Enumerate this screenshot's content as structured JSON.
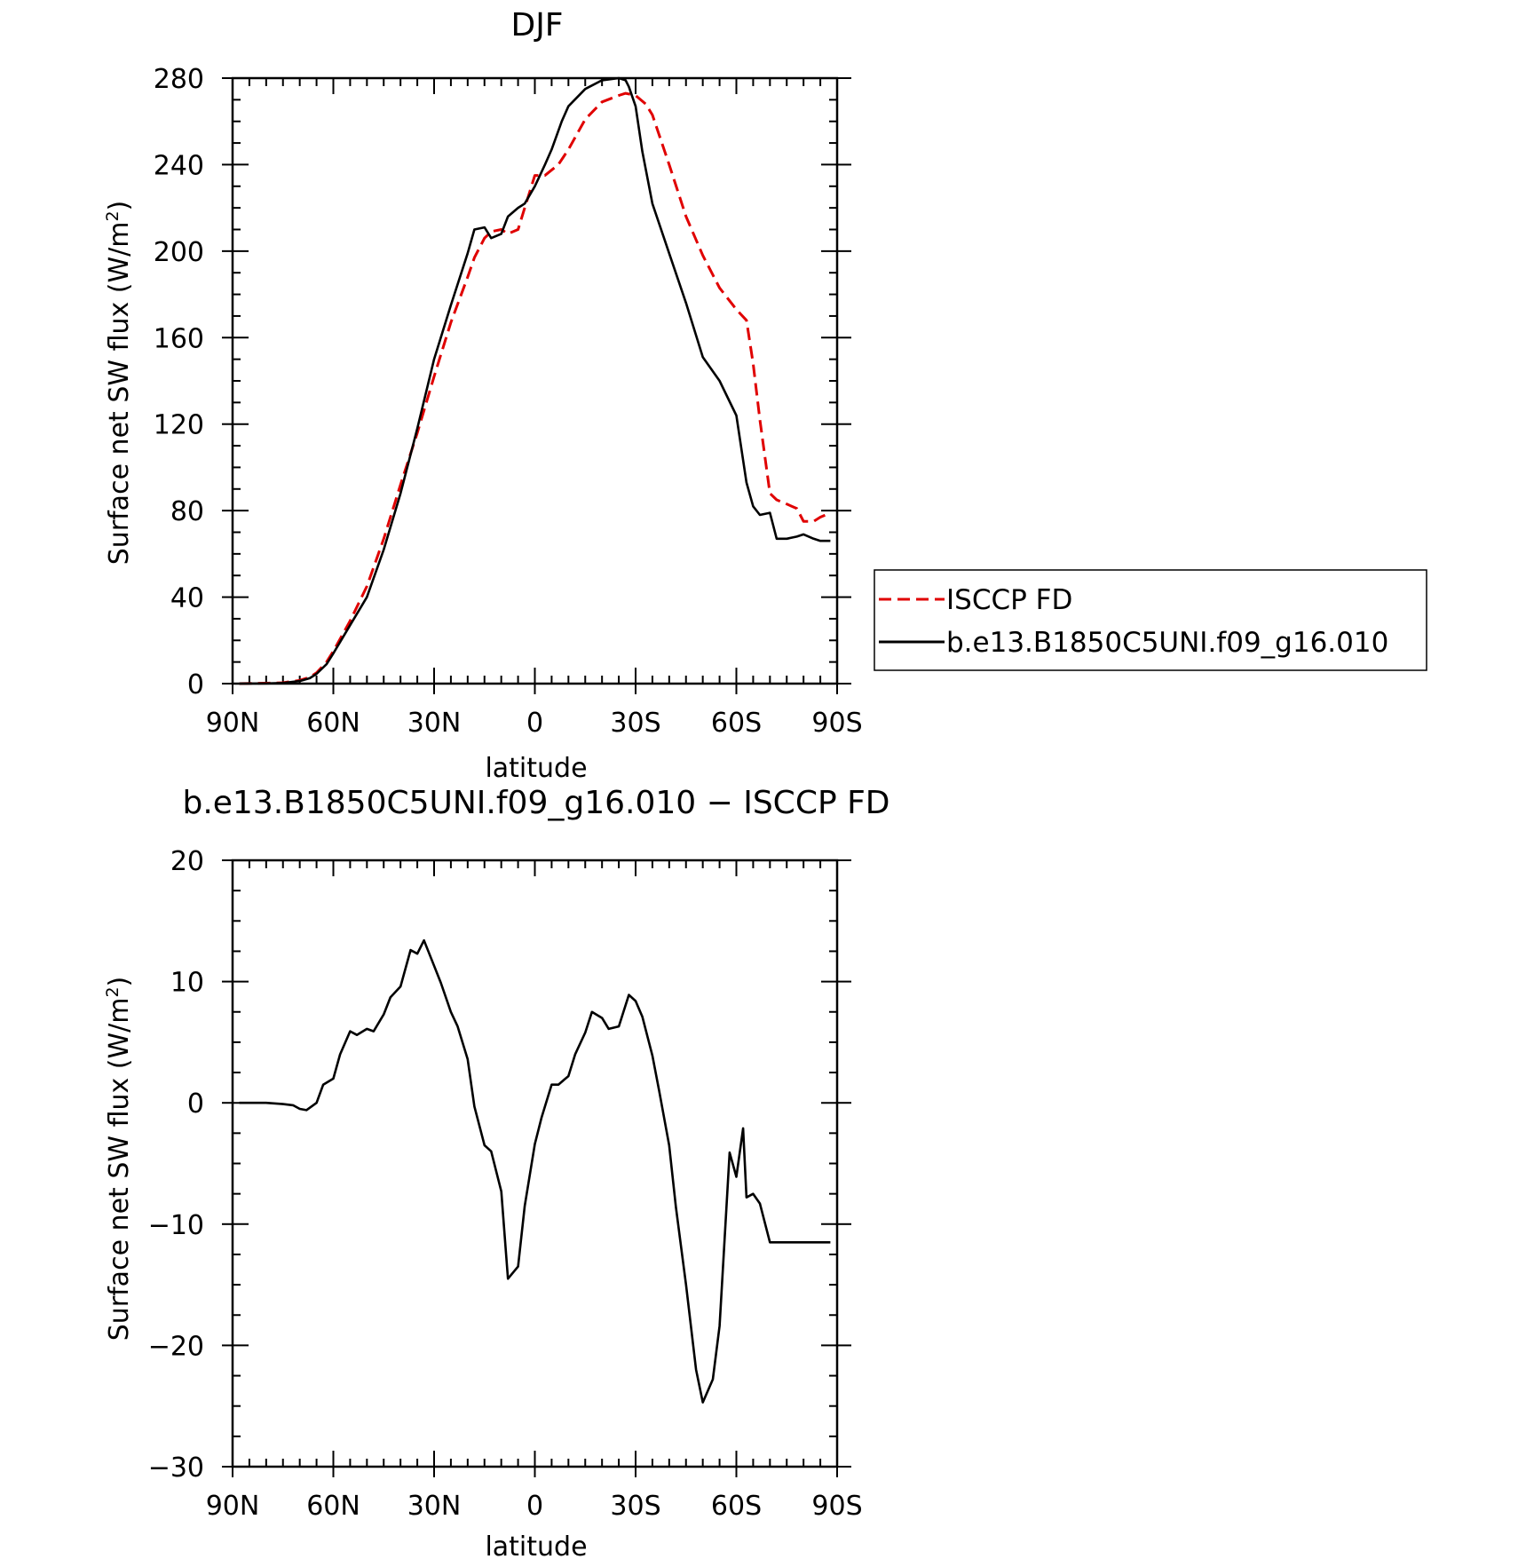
{
  "chart_data": [
    {
      "type": "line",
      "title": "DJF",
      "xlabel": "latitude",
      "ylabel_text": "Surface net SW flux (W/m",
      "ylabel_sup": "2",
      "ylabel_close": ")",
      "xlim": [
        -90,
        90
      ],
      "ylim": [
        0,
        280
      ],
      "x_ticks": [
        {
          "value": -90,
          "label": "90N"
        },
        {
          "value": -60,
          "label": "60N"
        },
        {
          "value": -30,
          "label": "30N"
        },
        {
          "value": 0,
          "label": "0"
        },
        {
          "value": 30,
          "label": "30S"
        },
        {
          "value": 60,
          "label": "60S"
        },
        {
          "value": 90,
          "label": "90S"
        }
      ],
      "y_ticks": [
        {
          "value": 0,
          "label": "0"
        },
        {
          "value": 40,
          "label": "40"
        },
        {
          "value": 80,
          "label": "80"
        },
        {
          "value": 120,
          "label": "120"
        },
        {
          "value": 160,
          "label": "160"
        },
        {
          "value": 200,
          "label": "200"
        },
        {
          "value": 240,
          "label": "240"
        },
        {
          "value": 280,
          "label": "280"
        }
      ],
      "legend": "right",
      "series": [
        {
          "name": "ISCCP FD",
          "color": "#e00000",
          "dash": true,
          "x": [
            -88,
            -80,
            -75,
            -70,
            -67,
            -65,
            -62,
            -60,
            -55,
            -50,
            -45,
            -40,
            -35,
            -30,
            -25,
            -20,
            -18,
            -15,
            -13,
            -10,
            -8,
            -5,
            -3,
            0,
            3,
            7,
            10,
            15,
            20,
            25,
            27,
            30,
            33,
            35,
            40,
            45,
            50,
            55,
            60,
            63,
            65,
            67,
            70,
            72,
            75,
            78,
            80,
            83,
            85,
            88
          ],
          "y": [
            0,
            0.2,
            0.4,
            1.5,
            3,
            5,
            10,
            15,
            29,
            45,
            67,
            92,
            116,
            142,
            167,
            188,
            197,
            206,
            209,
            210,
            208,
            210,
            220,
            235,
            235,
            240,
            247,
            261,
            269,
            272,
            273,
            272,
            268,
            263,
            240,
            216,
            198,
            183,
            173,
            168,
            148,
            122,
            88,
            85,
            83,
            81,
            75,
            75,
            77,
            79
          ]
        },
        {
          "name": "b.e13.B1850C5UNI.f09_g16.010",
          "color": "#000000",
          "dash": false,
          "x": [
            -88,
            -80,
            -75,
            -70,
            -67,
            -65,
            -62,
            -60,
            -55,
            -50,
            -45,
            -40,
            -35,
            -30,
            -25,
            -20,
            -18,
            -15,
            -13,
            -10,
            -8,
            -5,
            -3,
            0,
            3,
            5,
            8,
            10,
            15,
            20,
            25,
            27,
            28,
            30,
            32,
            35,
            40,
            45,
            50,
            55,
            60,
            63,
            65,
            67,
            70,
            72,
            75,
            78,
            80,
            83,
            85,
            88
          ],
          "y": [
            0,
            0.1,
            0.3,
            1.2,
            2.5,
            4.5,
            9,
            14,
            27,
            40,
            62,
            88,
            118,
            150,
            175,
            199,
            210,
            211,
            206,
            208,
            216,
            220,
            222,
            230,
            240,
            247,
            260,
            267,
            275,
            279,
            280,
            279,
            276,
            267,
            246,
            222,
            199,
            176,
            151,
            140,
            124,
            93,
            82,
            78,
            79,
            67,
            67,
            68,
            69,
            67,
            66,
            66
          ]
        }
      ]
    },
    {
      "type": "line",
      "title": "b.e13.B1850C5UNI.f09_g16.010 − ISCCP FD",
      "xlabel": "latitude",
      "ylabel_text": "Surface net SW flux (W/m",
      "ylabel_sup": "2",
      "ylabel_close": ")",
      "xlim": [
        -90,
        90
      ],
      "ylim": [
        -30,
        20
      ],
      "x_ticks": [
        {
          "value": -90,
          "label": "90N"
        },
        {
          "value": -60,
          "label": "60N"
        },
        {
          "value": -30,
          "label": "30N"
        },
        {
          "value": 0,
          "label": "0"
        },
        {
          "value": 30,
          "label": "30S"
        },
        {
          "value": 60,
          "label": "60S"
        },
        {
          "value": 90,
          "label": "90S"
        }
      ],
      "y_ticks": [
        {
          "value": -30,
          "label": "−30"
        },
        {
          "value": -20,
          "label": "−20"
        },
        {
          "value": -10,
          "label": "−10"
        },
        {
          "value": 0,
          "label": "0"
        },
        {
          "value": 10,
          "label": "10"
        },
        {
          "value": 20,
          "label": "20"
        }
      ],
      "series": [
        {
          "name": "",
          "color": "#000000",
          "dash": false,
          "x": [
            -88,
            -80,
            -75,
            -72,
            -70,
            -68,
            -65,
            -63,
            -60,
            -58,
            -55,
            -53,
            -50,
            -48,
            -45,
            -43,
            -40,
            -37,
            -35,
            -33,
            -30,
            -28,
            -25,
            -23,
            -20,
            -18,
            -15,
            -13,
            -10,
            -8,
            -5,
            -3,
            0,
            2,
            5,
            7,
            10,
            12,
            15,
            17,
            20,
            22,
            25,
            28,
            30,
            32,
            35,
            37,
            40,
            42,
            45,
            48,
            50,
            53,
            55,
            58,
            60,
            62,
            63,
            65,
            67,
            70,
            72,
            75,
            77,
            80,
            82,
            85,
            88
          ],
          "y": [
            0,
            0,
            -0.1,
            -0.2,
            -0.5,
            -0.6,
            0,
            1.5,
            2,
            4,
            5.9,
            5.6,
            6.1,
            5.9,
            7.3,
            8.7,
            9.6,
            12.6,
            12.3,
            13.4,
            11.3,
            9.9,
            7.5,
            6.3,
            3.6,
            -0.3,
            -3.5,
            -4,
            -7.3,
            -14.5,
            -13.5,
            -8.5,
            -3.4,
            -1.2,
            1.5,
            1.5,
            2.2,
            4,
            5.8,
            7.5,
            7,
            6.1,
            6.3,
            8.9,
            8.4,
            7.1,
            3.9,
            1,
            -3.5,
            -8.6,
            -15,
            -22,
            -24.7,
            -22.8,
            -18.4,
            -4.1,
            -6.1,
            -2.1,
            -7.8,
            -7.5,
            -8.3,
            -11.5,
            -11.5,
            -11.5,
            -11.5,
            -11.5,
            -11.5,
            -11.5,
            -11.5
          ]
        }
      ]
    }
  ]
}
